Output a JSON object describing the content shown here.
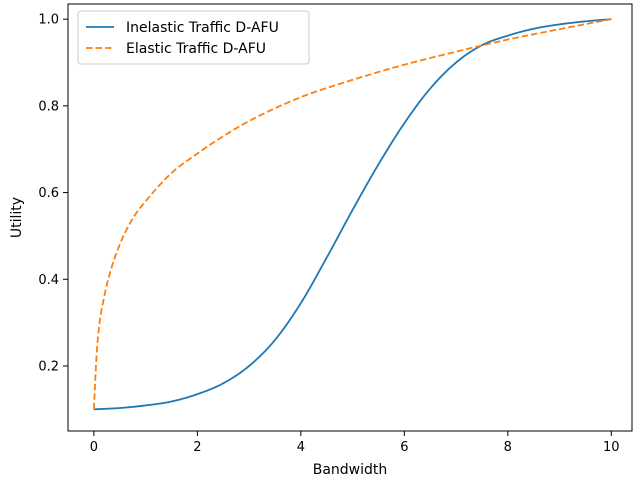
{
  "chart_data": {
    "type": "line",
    "xlabel": "Bandwidth",
    "ylabel": "Utility",
    "xlim": [
      -0.5,
      10.4
    ],
    "ylim": [
      0.05,
      1.035
    ],
    "xticks": [
      0,
      2,
      4,
      6,
      8,
      10
    ],
    "xtick_labels": [
      "0",
      "2",
      "4",
      "6",
      "8",
      "10"
    ],
    "yticks": [
      0.2,
      0.4,
      0.6,
      0.8,
      1.0
    ],
    "ytick_labels": [
      "0.2",
      "0.4",
      "0.6",
      "0.8",
      "1.0"
    ],
    "grid": false,
    "legend_position": "upper-left",
    "series": [
      {
        "name": "Inelastic Traffic D-AFU",
        "color": "#1f77b4",
        "style": "solid",
        "x": [
          0,
          0.5,
          1,
          1.5,
          2,
          2.5,
          3,
          3.5,
          4,
          4.5,
          5,
          5.5,
          6,
          6.5,
          7,
          7.5,
          8,
          8.5,
          9,
          9.5,
          10
        ],
        "y": [
          0.1,
          0.103,
          0.109,
          0.118,
          0.135,
          0.16,
          0.2,
          0.26,
          0.345,
          0.45,
          0.56,
          0.665,
          0.76,
          0.84,
          0.9,
          0.94,
          0.962,
          0.978,
          0.988,
          0.995,
          1.0
        ]
      },
      {
        "name": "Elastic Traffic D-AFU",
        "color": "#ff7f0e",
        "style": "dashed",
        "x": [
          0,
          0.05,
          0.1,
          0.2,
          0.3,
          0.5,
          0.75,
          1,
          1.5,
          2,
          2.5,
          3,
          4,
          5,
          6,
          7,
          8,
          9,
          10
        ],
        "y": [
          0.1,
          0.22,
          0.29,
          0.36,
          0.41,
          0.48,
          0.54,
          0.58,
          0.645,
          0.69,
          0.73,
          0.765,
          0.82,
          0.86,
          0.895,
          0.925,
          0.953,
          0.977,
          1.0
        ]
      }
    ]
  }
}
